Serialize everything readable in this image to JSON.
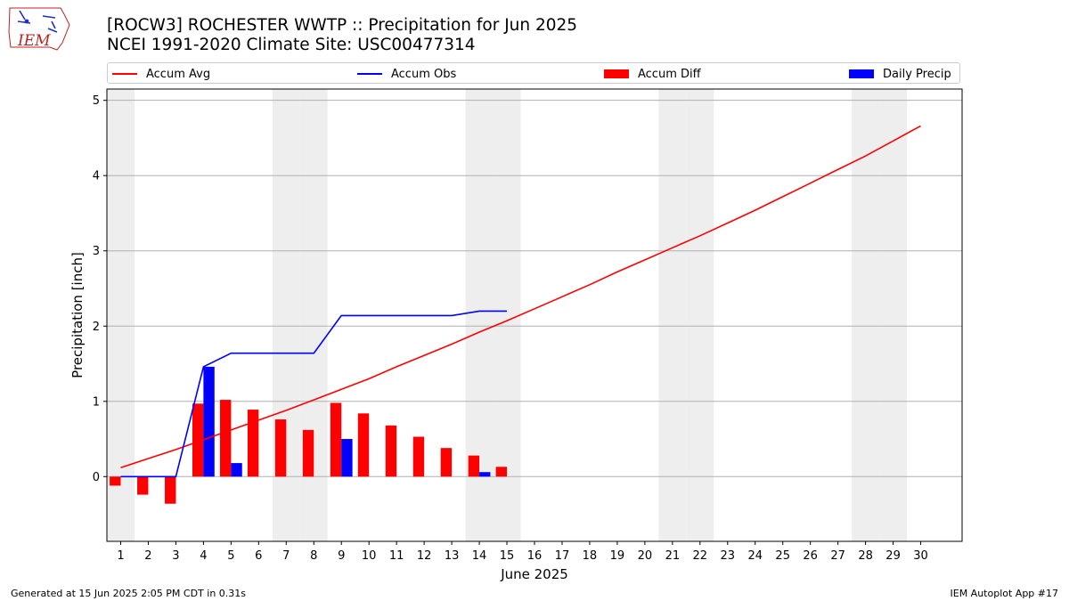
{
  "header": {
    "title_line1": "[ROCW3] ROCHESTER WWTP :: Precipitation for Jun 2025",
    "title_line2": "NCEI 1991-2020 Climate Site: USC00477314"
  },
  "logo": {
    "text": "IEM"
  },
  "footer": {
    "left": "Generated at 15 Jun 2025 2:05 PM CDT in 0.31s",
    "right": "IEM Autoplot App #17"
  },
  "colors": {
    "avg": "#ff0000",
    "obs": "#0000ff",
    "diff": "#ff0000",
    "daily": "#0000ff",
    "weekend": "#eeeeee",
    "grid": "#b0b0b0"
  },
  "chart_data": {
    "type": "bar",
    "xlabel": "June 2025",
    "ylabel": "Precipitation [inch]",
    "xlim": [
      0.5,
      31.5
    ],
    "ylim": [
      -0.86,
      5.15
    ],
    "yticks": [
      0,
      1,
      2,
      3,
      4,
      5
    ],
    "days": [
      1,
      2,
      3,
      4,
      5,
      6,
      7,
      8,
      9,
      10,
      11,
      12,
      13,
      14,
      15,
      16,
      17,
      18,
      19,
      20,
      21,
      22,
      23,
      24,
      25,
      26,
      27,
      28,
      29,
      30
    ],
    "weekend_days": [
      1,
      7,
      8,
      14,
      15,
      21,
      22,
      28,
      29
    ],
    "grid": true,
    "legend": [
      "Accum Avg",
      "Accum Obs",
      "Accum Diff",
      "Daily Precip"
    ],
    "legend_position": "top",
    "series": [
      {
        "name": "Accum Avg",
        "kind": "line",
        "x": [
          1,
          2,
          3,
          4,
          5,
          6,
          7,
          8,
          9,
          10,
          11,
          12,
          13,
          14,
          15,
          16,
          17,
          18,
          19,
          20,
          21,
          22,
          23,
          24,
          25,
          26,
          27,
          28,
          29,
          30
        ],
        "values": [
          0.12,
          0.24,
          0.36,
          0.49,
          0.62,
          0.75,
          0.88,
          1.02,
          1.16,
          1.3,
          1.46,
          1.61,
          1.76,
          1.92,
          2.07,
          2.23,
          2.39,
          2.55,
          2.72,
          2.88,
          3.04,
          3.2,
          3.37,
          3.54,
          3.72,
          3.9,
          4.08,
          4.26,
          4.46,
          4.66
        ]
      },
      {
        "name": "Accum Obs",
        "kind": "line",
        "x": [
          1,
          2,
          3,
          4,
          5,
          6,
          7,
          8,
          9,
          10,
          11,
          12,
          13,
          14,
          15
        ],
        "values": [
          0.0,
          0.0,
          0.0,
          1.46,
          1.64,
          1.64,
          1.64,
          1.64,
          2.14,
          2.14,
          2.14,
          2.14,
          2.14,
          2.2,
          2.2
        ]
      },
      {
        "name": "Accum Diff",
        "kind": "bar",
        "x": [
          1,
          2,
          3,
          4,
          5,
          6,
          7,
          8,
          9,
          10,
          11,
          12,
          13,
          14,
          15
        ],
        "values": [
          -0.12,
          -0.24,
          -0.36,
          0.97,
          1.02,
          0.89,
          0.76,
          0.62,
          0.98,
          0.84,
          0.68,
          0.53,
          0.38,
          0.28,
          0.13
        ]
      },
      {
        "name": "Daily Precip",
        "kind": "bar",
        "x": [
          1,
          2,
          3,
          4,
          5,
          6,
          7,
          8,
          9,
          10,
          11,
          12,
          13,
          14,
          15
        ],
        "values": [
          0,
          0,
          0,
          1.46,
          0.18,
          0,
          0,
          0,
          0.5,
          0,
          0,
          0,
          0,
          0.06,
          0
        ]
      }
    ]
  }
}
